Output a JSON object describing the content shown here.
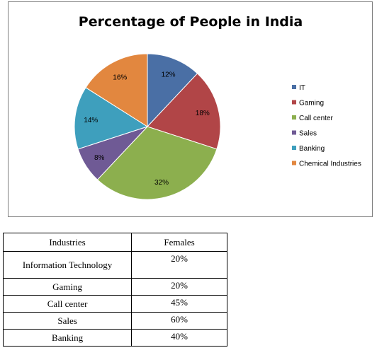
{
  "chart_data": {
    "type": "pie",
    "title": "Percentage of People in India",
    "categories": [
      "IT",
      "Gaming",
      "Call center",
      "Sales",
      "Banking",
      "Chemical Industries"
    ],
    "values": [
      12,
      18,
      32,
      8,
      14,
      16
    ],
    "value_labels": [
      "12%",
      "18%",
      "32%",
      "8%",
      "14%",
      "16%"
    ],
    "colors": [
      "#4a6fa5",
      "#b14547",
      "#8caf4e",
      "#6f5a95",
      "#3e9fbd",
      "#e2873f"
    ],
    "legend_placement": "right"
  },
  "table": {
    "headers": [
      "Industries",
      "Females"
    ],
    "rows": [
      [
        "Information Technology",
        "20%"
      ],
      [
        "Gaming",
        "20%"
      ],
      [
        "Call center",
        "45%"
      ],
      [
        "Sales",
        "60%"
      ],
      [
        "Banking",
        "40%"
      ]
    ]
  }
}
